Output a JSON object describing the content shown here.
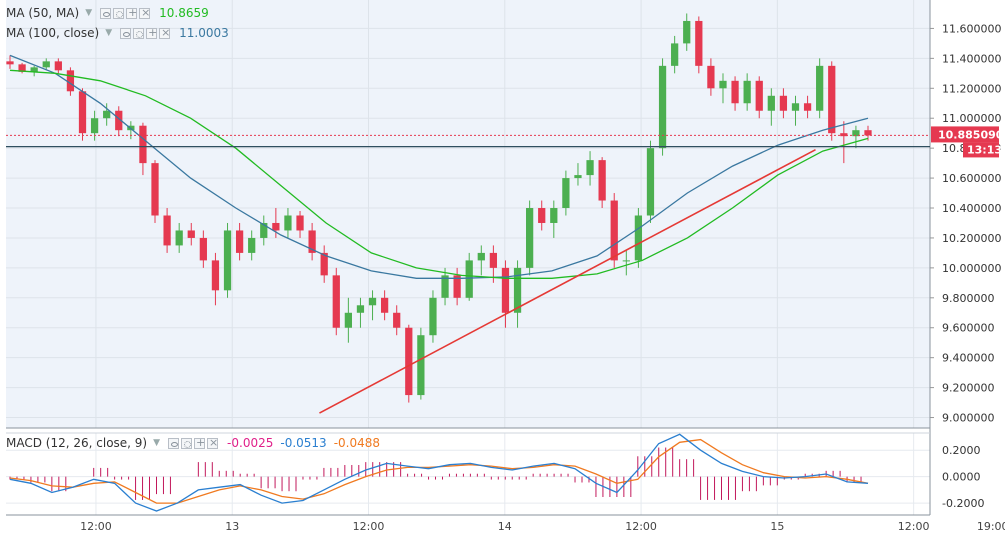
{
  "chart_data": {
    "type": "candlestick",
    "main_panel": {
      "legend": [
        {
          "label": "MA (50, MA)",
          "value": "10.8659",
          "color": "#22bb22"
        },
        {
          "label": "MA (100, close)",
          "value": "11.0003",
          "color": "#3a78a0"
        }
      ],
      "y_ticks": [
        "11.600000",
        "11.400000",
        "11.200000",
        "11.000000",
        "10.800000",
        "10.600000",
        "10.400000",
        "10.200000",
        "10.000000",
        "9.800000",
        "9.600000",
        "9.400000",
        "9.200000",
        "9.000000"
      ],
      "y_range": [
        8.93,
        11.79
      ],
      "current_price": "10.885090",
      "countdown": "13:13",
      "horizontal_line": 10.81,
      "trendline": {
        "color": "#e53935",
        "from": {
          "x_day": 13.32,
          "y": 9.03
        },
        "to": {
          "x_day": 15.14,
          "y": 10.79
        }
      },
      "candles": [
        [
          11.38,
          11.42,
          11.33,
          11.36
        ],
        [
          11.36,
          11.37,
          11.3,
          11.31
        ],
        [
          11.31,
          11.35,
          11.28,
          11.34
        ],
        [
          11.34,
          11.4,
          11.32,
          11.38
        ],
        [
          11.38,
          11.4,
          11.3,
          11.32
        ],
        [
          11.32,
          11.34,
          11.15,
          11.18
        ],
        [
          11.18,
          11.2,
          10.85,
          10.9
        ],
        [
          10.9,
          11.05,
          10.85,
          11.0
        ],
        [
          11.0,
          11.1,
          10.95,
          11.05
        ],
        [
          11.05,
          11.08,
          10.88,
          10.92
        ],
        [
          10.92,
          10.98,
          10.86,
          10.95
        ],
        [
          10.95,
          10.97,
          10.62,
          10.7
        ],
        [
          10.7,
          10.72,
          10.3,
          10.35
        ],
        [
          10.35,
          10.4,
          10.1,
          10.15
        ],
        [
          10.15,
          10.3,
          10.1,
          10.25
        ],
        [
          10.25,
          10.3,
          10.15,
          10.2
        ],
        [
          10.2,
          10.25,
          10.0,
          10.05
        ],
        [
          10.05,
          10.1,
          9.75,
          9.85
        ],
        [
          9.85,
          10.3,
          9.8,
          10.25
        ],
        [
          10.25,
          10.3,
          10.05,
          10.1
        ],
        [
          10.1,
          10.25,
          10.05,
          10.2
        ],
        [
          10.2,
          10.35,
          10.15,
          10.3
        ],
        [
          10.3,
          10.4,
          10.2,
          10.25
        ],
        [
          10.25,
          10.4,
          10.2,
          10.35
        ],
        [
          10.35,
          10.38,
          10.2,
          10.25
        ],
        [
          10.25,
          10.3,
          10.05,
          10.1
        ],
        [
          10.1,
          10.15,
          9.9,
          9.95
        ],
        [
          9.95,
          10.0,
          9.55,
          9.6
        ],
        [
          9.6,
          9.8,
          9.5,
          9.7
        ],
        [
          9.7,
          9.8,
          9.6,
          9.75
        ],
        [
          9.75,
          9.85,
          9.65,
          9.8
        ],
        [
          9.8,
          9.85,
          9.65,
          9.7
        ],
        [
          9.7,
          9.75,
          9.55,
          9.6
        ],
        [
          9.6,
          9.62,
          9.1,
          9.15
        ],
        [
          9.15,
          9.6,
          9.12,
          9.55
        ],
        [
          9.55,
          9.85,
          9.5,
          9.8
        ],
        [
          9.8,
          10.0,
          9.75,
          9.95
        ],
        [
          9.95,
          10.0,
          9.75,
          9.8
        ],
        [
          9.8,
          10.1,
          9.78,
          10.05
        ],
        [
          10.05,
          10.15,
          9.95,
          10.1
        ],
        [
          10.1,
          10.15,
          9.9,
          10.0
        ],
        [
          10.0,
          10.05,
          9.6,
          9.7
        ],
        [
          9.7,
          10.05,
          9.6,
          10.0
        ],
        [
          10.0,
          10.45,
          9.95,
          10.4
        ],
        [
          10.4,
          10.45,
          10.25,
          10.3
        ],
        [
          10.3,
          10.45,
          10.2,
          10.4
        ],
        [
          10.4,
          10.65,
          10.35,
          10.6
        ],
        [
          10.6,
          10.7,
          10.55,
          10.62
        ],
        [
          10.62,
          10.78,
          10.55,
          10.72
        ],
        [
          10.72,
          10.74,
          10.4,
          10.45
        ],
        [
          10.45,
          10.5,
          10.0,
          10.05
        ],
        [
          10.05,
          10.12,
          9.95,
          10.05
        ],
        [
          10.05,
          10.4,
          10.0,
          10.35
        ],
        [
          10.35,
          10.85,
          10.3,
          10.8
        ],
        [
          10.8,
          11.4,
          10.75,
          11.35
        ],
        [
          11.35,
          11.55,
          11.3,
          11.5
        ],
        [
          11.5,
          11.7,
          11.45,
          11.65
        ],
        [
          11.65,
          11.68,
          11.3,
          11.35
        ],
        [
          11.35,
          11.4,
          11.15,
          11.2
        ],
        [
          11.2,
          11.3,
          11.1,
          11.25
        ],
        [
          11.25,
          11.28,
          11.05,
          11.1
        ],
        [
          11.1,
          11.3,
          11.05,
          11.25
        ],
        [
          11.25,
          11.28,
          11.0,
          11.05
        ],
        [
          11.05,
          11.2,
          10.95,
          11.15
        ],
        [
          11.15,
          11.2,
          11.0,
          11.05
        ],
        [
          11.05,
          11.15,
          10.95,
          11.1
        ],
        [
          11.1,
          11.15,
          11.0,
          11.05
        ],
        [
          11.05,
          11.4,
          11.0,
          11.35
        ],
        [
          11.35,
          11.38,
          10.85,
          10.9
        ],
        [
          10.9,
          10.98,
          10.7,
          10.88
        ],
        [
          10.88,
          10.95,
          10.8,
          10.92
        ],
        [
          10.92,
          10.95,
          10.85,
          10.885
        ]
      ],
      "ma50": [
        11.32,
        11.3,
        11.25,
        11.15,
        11.0,
        10.8,
        10.55,
        10.3,
        10.1,
        10.0,
        9.95,
        9.93,
        9.93,
        9.96,
        10.05,
        10.2,
        10.4,
        10.62,
        10.78,
        10.865
      ],
      "ma100": [
        11.42,
        11.3,
        11.1,
        10.85,
        10.6,
        10.4,
        10.22,
        10.08,
        9.98,
        9.93,
        9.93,
        9.94,
        9.98,
        10.08,
        10.28,
        10.5,
        10.68,
        10.82,
        10.92,
        11.0
      ]
    },
    "macd_panel": {
      "legend_label": "MACD (12, 26, close, 9)",
      "values": [
        "-0.0025",
        "-0.0513",
        "-0.0488"
      ],
      "value_colors": [
        "#e0208a",
        "#2a7fd0",
        "#f07a20"
      ],
      "y_ticks": [
        "0.2000",
        "0.0000",
        "-0.2000"
      ],
      "y_range": [
        -0.29,
        0.33
      ],
      "macd": [
        -0.02,
        -0.05,
        -0.12,
        -0.08,
        -0.02,
        -0.05,
        -0.2,
        -0.26,
        -0.2,
        -0.1,
        -0.08,
        -0.06,
        -0.14,
        -0.2,
        -0.18,
        -0.1,
        -0.02,
        0.05,
        0.1,
        0.08,
        0.06,
        0.09,
        0.1,
        0.07,
        0.05,
        0.08,
        0.1,
        0.06,
        -0.05,
        -0.12,
        0.05,
        0.25,
        0.32,
        0.2,
        0.1,
        0.04,
        0.0,
        -0.01,
        0.0,
        0.02,
        -0.04,
        -0.05
      ],
      "signal": [
        -0.01,
        -0.03,
        -0.07,
        -0.08,
        -0.05,
        -0.04,
        -0.12,
        -0.2,
        -0.2,
        -0.15,
        -0.1,
        -0.07,
        -0.1,
        -0.15,
        -0.17,
        -0.13,
        -0.06,
        0.0,
        0.05,
        0.07,
        0.07,
        0.08,
        0.09,
        0.08,
        0.06,
        0.07,
        0.09,
        0.08,
        0.02,
        -0.05,
        -0.02,
        0.15,
        0.26,
        0.28,
        0.18,
        0.09,
        0.03,
        0.0,
        -0.01,
        0.0,
        -0.02,
        -0.05
      ]
    },
    "x_axis": {
      "labels": [
        "12:00",
        "13",
        "12:00",
        "14",
        "12:00",
        "15",
        "12:00",
        "19:00"
      ],
      "day_span": [
        12.17,
        15.56
      ]
    },
    "colors": {
      "up": "#4caf50",
      "down": "#e53950",
      "grid": "#eef1f4",
      "bg_plot": "#eef3fa"
    }
  }
}
